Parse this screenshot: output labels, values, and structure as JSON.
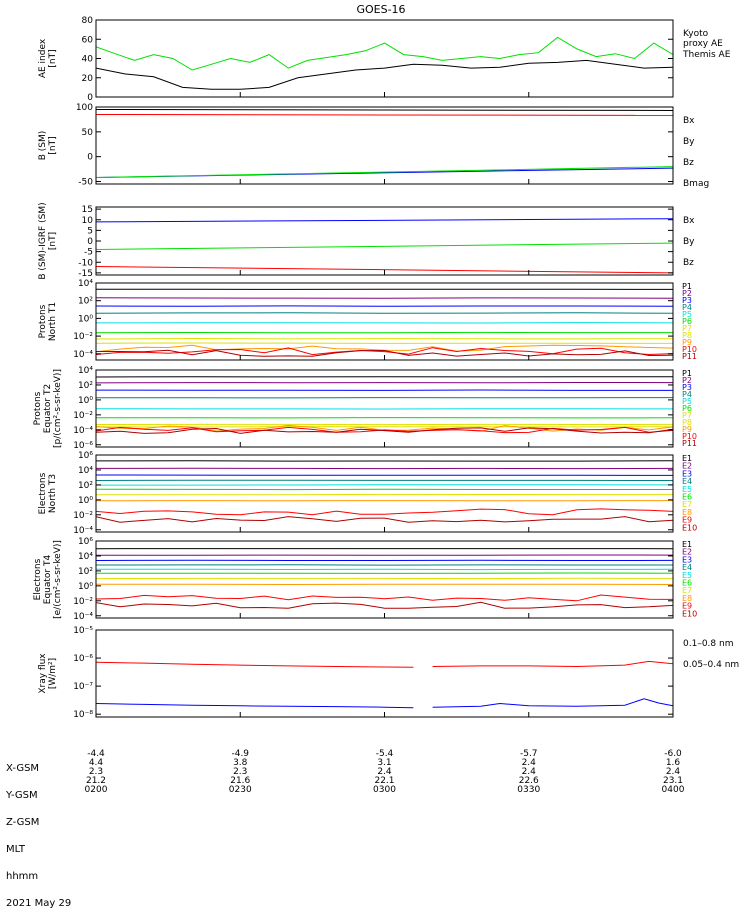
{
  "title": "GOES-16",
  "colors": {
    "black": "#000000",
    "green": "#00e000",
    "blue": "#0000ff",
    "red": "#ff0000",
    "darkred": "#b00000",
    "cyan": "#00e0e0",
    "yellow": "#e0e000",
    "orange": "#ff9900",
    "navy": "#000080",
    "purple": "#800080",
    "teal": "#008080"
  },
  "chart_data": [
    {
      "type": "line",
      "ylabel": "AE index\n[nT]",
      "ylim": [
        0,
        80
      ],
      "yticks": [
        "0",
        "20",
        "40",
        "60",
        "80"
      ],
      "yscale": "linear",
      "legend": [
        {
          "label": "Kyoto\nproxy AE",
          "color": "#00e000"
        },
        {
          "label": "Themis AE",
          "color": "#000000"
        }
      ],
      "series": [
        {
          "name": "Kyoto proxy AE",
          "color": "#00e000",
          "x": [
            0,
            4,
            8,
            12,
            16,
            20,
            24,
            28,
            32,
            36,
            40,
            44,
            48,
            52,
            56,
            60,
            64,
            68,
            72,
            76,
            80,
            84,
            88,
            92,
            96,
            100,
            104,
            108,
            112,
            116,
            120
          ],
          "y": [
            52,
            45,
            38,
            44,
            40,
            28,
            34,
            40,
            36,
            44,
            30,
            38,
            41,
            44,
            48,
            56,
            44,
            42,
            38,
            40,
            42,
            40,
            44,
            46,
            62,
            50,
            42,
            45,
            40,
            56,
            44
          ]
        },
        {
          "name": "Themis AE",
          "color": "#000000",
          "x": [
            0,
            6,
            12,
            18,
            24,
            30,
            36,
            42,
            48,
            54,
            60,
            66,
            72,
            78,
            84,
            90,
            96,
            102,
            108,
            114,
            120
          ],
          "y": [
            30,
            24,
            21,
            10,
            8,
            8,
            10,
            20,
            24,
            28,
            30,
            34,
            33,
            30,
            31,
            35,
            36,
            38,
            34,
            30,
            31
          ]
        }
      ]
    },
    {
      "type": "line",
      "ylabel": "B (SM)\n[nT]",
      "ylim": [
        -55,
        100
      ],
      "yticks": [
        "-50",
        "0",
        "50",
        "100"
      ],
      "yscale": "linear",
      "legend": [
        {
          "label": "Bx",
          "color": "#0000ff"
        },
        {
          "label": "By",
          "color": "#00e000"
        },
        {
          "label": "Bz",
          "color": "#ff0000"
        },
        {
          "label": "Bmag",
          "color": "#000000"
        }
      ],
      "series": [
        {
          "name": "Bx",
          "color": "#0000ff",
          "x": [
            0,
            120
          ],
          "y": [
            -42,
            -23
          ]
        },
        {
          "name": "By",
          "color": "#00e000",
          "x": [
            0,
            120
          ],
          "y": [
            -42,
            -20
          ]
        },
        {
          "name": "Bz",
          "color": "#ff0000",
          "x": [
            0,
            120
          ],
          "y": [
            85,
            83
          ]
        },
        {
          "name": "Bmag",
          "color": "#000000",
          "x": [
            0,
            120
          ],
          "y": [
            95,
            93
          ]
        }
      ]
    },
    {
      "type": "line",
      "ylabel": "B (SM)-IGRF (SM)\n[nT]",
      "ylim": [
        -16,
        16
      ],
      "yticks": [
        "-15",
        "-10",
        "-5",
        "0",
        "5",
        "10",
        "15"
      ],
      "yscale": "linear",
      "legend": [
        {
          "label": "Bx",
          "color": "#0000ff"
        },
        {
          "label": "By",
          "color": "#00e000"
        },
        {
          "label": "Bz",
          "color": "#ff0000"
        }
      ],
      "series": [
        {
          "name": "Bx",
          "color": "#0000ff",
          "x": [
            0,
            120
          ],
          "y": [
            9,
            10.5
          ]
        },
        {
          "name": "By",
          "color": "#00e000",
          "x": [
            0,
            120
          ],
          "y": [
            -4,
            -1
          ]
        },
        {
          "name": "Bz",
          "color": "#ff0000",
          "x": [
            0,
            120
          ],
          "y": [
            -12,
            -15
          ]
        }
      ]
    },
    {
      "type": "line",
      "ylabel": "Protons\nNorth T1",
      "ylim": [
        -4.7,
        4
      ],
      "yticks": [
        "10⁴",
        "10²",
        "10⁰",
        "10⁻²",
        "10⁻⁴"
      ],
      "yscale": "log10",
      "legend": [
        {
          "label": "P1",
          "color": "#000000"
        },
        {
          "label": "P2",
          "color": "#800080"
        },
        {
          "label": "P3",
          "color": "#0000ff"
        },
        {
          "label": "P4",
          "color": "#008080"
        },
        {
          "label": "P5",
          "color": "#00e0e0"
        },
        {
          "label": "P6",
          "color": "#00e000"
        },
        {
          "label": "P7",
          "color": "#e0e000"
        },
        {
          "label": "P8",
          "color": "#e0e000"
        },
        {
          "label": "P9",
          "color": "#ff9900"
        },
        {
          "label": "P10",
          "color": "#ff0000"
        },
        {
          "label": "P11",
          "color": "#b00000"
        }
      ]
    },
    {
      "type": "line",
      "ylabel": "Protons\nEquator T2\n[p/(cm²-s-sr-keV)]",
      "ylim": [
        -6.3,
        4
      ],
      "yticks": [
        "10⁴",
        "10²",
        "10⁰",
        "10⁻²",
        "10⁻⁴",
        "10⁻⁶"
      ],
      "yscale": "log10",
      "legend": [
        {
          "label": "P1",
          "color": "#000000"
        },
        {
          "label": "P2",
          "color": "#800080"
        },
        {
          "label": "P3",
          "color": "#0000ff"
        },
        {
          "label": "P4",
          "color": "#008080"
        },
        {
          "label": "P5",
          "color": "#00e0e0"
        },
        {
          "label": "P6",
          "color": "#00e000"
        },
        {
          "label": "P7",
          "color": "#e0e000"
        },
        {
          "label": "P8",
          "color": "#e0e000"
        },
        {
          "label": "P9",
          "color": "#ff9900"
        },
        {
          "label": "P10",
          "color": "#ff0000"
        },
        {
          "label": "P11",
          "color": "#b00000"
        }
      ]
    },
    {
      "type": "line",
      "ylabel": "Electrons\nNorth T3",
      "ylim": [
        -4.3,
        6
      ],
      "yticks": [
        "10⁶",
        "10⁴",
        "10²",
        "10⁰",
        "10⁻²",
        "10⁻⁴"
      ],
      "yscale": "log10",
      "legend": [
        {
          "label": "E1",
          "color": "#000000"
        },
        {
          "label": "E2",
          "color": "#800080"
        },
        {
          "label": "E3",
          "color": "#0000ff"
        },
        {
          "label": "E4",
          "color": "#008080"
        },
        {
          "label": "E5",
          "color": "#00e0e0"
        },
        {
          "label": "E6",
          "color": "#00e000"
        },
        {
          "label": "E7",
          "color": "#e0e000"
        },
        {
          "label": "E8",
          "color": "#ff9900"
        },
        {
          "label": "E9",
          "color": "#ff0000"
        },
        {
          "label": "E10",
          "color": "#b00000"
        }
      ]
    },
    {
      "type": "line",
      "ylabel": "Electrons\nEquator T4\n[e/(cm²-s-sr-keV)]",
      "ylim": [
        -4.3,
        6
      ],
      "yticks": [
        "10⁶",
        "10⁴",
        "10²",
        "10⁰",
        "10⁻²",
        "10⁻⁴"
      ],
      "yscale": "log10",
      "legend": [
        {
          "label": "E1",
          "color": "#000000"
        },
        {
          "label": "E2",
          "color": "#800080"
        },
        {
          "label": "E3",
          "color": "#0000ff"
        },
        {
          "label": "E4",
          "color": "#008080"
        },
        {
          "label": "E5",
          "color": "#00e0e0"
        },
        {
          "label": "E6",
          "color": "#00e000"
        },
        {
          "label": "E7",
          "color": "#e0e000"
        },
        {
          "label": "E8",
          "color": "#ff9900"
        },
        {
          "label": "E9",
          "color": "#ff0000"
        },
        {
          "label": "E10",
          "color": "#b00000"
        }
      ]
    },
    {
      "type": "line",
      "ylabel": "Xray flux\n[W/m²]",
      "ylim": [
        -8.1,
        -5
      ],
      "yticks": [
        "10⁻⁵",
        "10⁻⁶",
        "10⁻⁷",
        "10⁻⁸"
      ],
      "yscale": "log10",
      "legend": [
        {
          "label": "0.1–0.8 nm",
          "color": "#ff0000"
        },
        {
          "label": "0.05–0.4 nm",
          "color": "#0000ff"
        }
      ],
      "series": [
        {
          "name": "0.1–0.8 nm",
          "color": "#ff0000",
          "segments": [
            {
              "x": [
                0,
                10,
                20,
                30,
                40,
                50,
                60,
                66
              ],
              "y": [
                -6.15,
                -6.18,
                -6.22,
                -6.25,
                -6.28,
                -6.3,
                -6.32,
                -6.33
              ]
            },
            {
              "x": [
                70,
                80,
                90,
                100,
                110,
                115,
                120
              ],
              "y": [
                -6.3,
                -6.28,
                -6.28,
                -6.3,
                -6.25,
                -6.12,
                -6.2
              ]
            }
          ]
        },
        {
          "name": "0.05–0.4 nm",
          "color": "#0000ff",
          "segments": [
            {
              "x": [
                0,
                10,
                20,
                30,
                40,
                50,
                60,
                66
              ],
              "y": [
                -7.62,
                -7.65,
                -7.68,
                -7.7,
                -7.72,
                -7.73,
                -7.75,
                -7.77
              ]
            },
            {
              "x": [
                70,
                80,
                84,
                90,
                100,
                110,
                114,
                117,
                120
              ],
              "y": [
                -7.75,
                -7.72,
                -7.62,
                -7.7,
                -7.72,
                -7.68,
                -7.45,
                -7.6,
                -7.7
              ]
            }
          ]
        }
      ]
    }
  ],
  "xaxis": {
    "rows": [
      {
        "label": "X-GSM",
        "values": [
          "-4.4",
          "-4.9",
          "-5.4",
          "-5.7",
          "-6.0"
        ]
      },
      {
        "label": "Y-GSM",
        "values": [
          "4.4",
          "3.8",
          "3.1",
          "2.4",
          "1.6"
        ]
      },
      {
        "label": "Z-GSM",
        "values": [
          "2.3",
          "2.3",
          "2.4",
          "2.4",
          "2.4"
        ]
      },
      {
        "label": "MLT",
        "values": [
          "21.2",
          "21.6",
          "22.1",
          "22.6",
          "23.1"
        ]
      },
      {
        "label": "hhmm",
        "values": [
          "0200",
          "0230",
          "0300",
          "0330",
          "0400"
        ]
      }
    ],
    "date": "2021 May 29"
  }
}
